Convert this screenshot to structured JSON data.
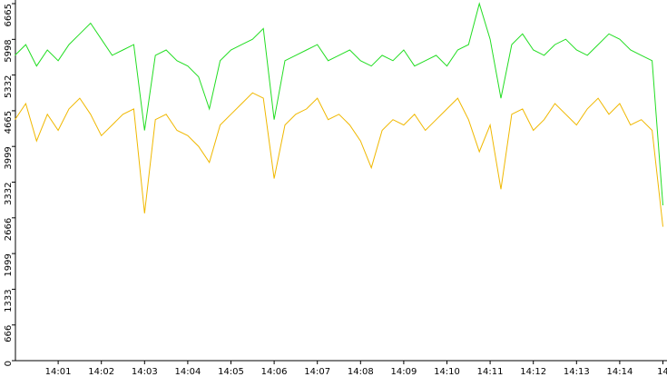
{
  "chart_data": {
    "type": "line",
    "categories": [
      null,
      null,
      null,
      null,
      "14:01",
      null,
      null,
      null,
      "14:02",
      null,
      null,
      null,
      "14:03",
      null,
      null,
      null,
      "14:04",
      null,
      null,
      null,
      "14:05",
      null,
      null,
      null,
      "14:06",
      null,
      null,
      null,
      "14:07",
      null,
      null,
      null,
      "14:08",
      null,
      null,
      null,
      "14:09",
      null,
      null,
      null,
      "14:10",
      null,
      null,
      null,
      "14:11",
      null,
      null,
      null,
      "14:12",
      null,
      null,
      null,
      "14:13",
      null,
      null,
      null,
      "14:14",
      null,
      null,
      null,
      "14"
    ],
    "series": [
      {
        "color": "#22dd22",
        "values": [
          5700,
          5900,
          5500,
          5800,
          5600,
          5900,
          6100,
          6300,
          6000,
          5700,
          5800,
          5900,
          4300,
          5700,
          5800,
          5600,
          5500,
          5300,
          4700,
          5600,
          5800,
          5900,
          6000,
          6200,
          4500,
          5600,
          5700,
          5800,
          5900,
          5600,
          5700,
          5800,
          5600,
          5500,
          5700,
          5600,
          5800,
          5500,
          5600,
          5700,
          5500,
          5800,
          5900,
          6665,
          6000,
          4900,
          5900,
          6100,
          5800,
          5700,
          5900,
          6000,
          5800,
          5700,
          5900,
          6100,
          6000,
          5800,
          5700,
          5600,
          2900
        ]
      },
      {
        "color": "#f0b800",
        "values": [
          4500,
          4800,
          4100,
          4600,
          4300,
          4700,
          4900,
          4600,
          4200,
          4400,
          4600,
          4700,
          2750,
          4500,
          4600,
          4300,
          4200,
          4000,
          3700,
          4400,
          4600,
          4800,
          5000,
          4900,
          3400,
          4400,
          4600,
          4700,
          4900,
          4500,
          4600,
          4400,
          4100,
          3600,
          4300,
          4500,
          4400,
          4600,
          4300,
          4500,
          4700,
          4900,
          4500,
          3900,
          4400,
          3200,
          4600,
          4700,
          4300,
          4500,
          4800,
          4600,
          4400,
          4700,
          4900,
          4600,
          4800,
          4400,
          4500,
          4300,
          2500
        ]
      }
    ],
    "ylim": [
      0,
      6665
    ],
    "yticks": [
      0,
      666,
      1333,
      1999,
      2666,
      3332,
      3999,
      4665,
      5332,
      5998,
      6665
    ]
  }
}
